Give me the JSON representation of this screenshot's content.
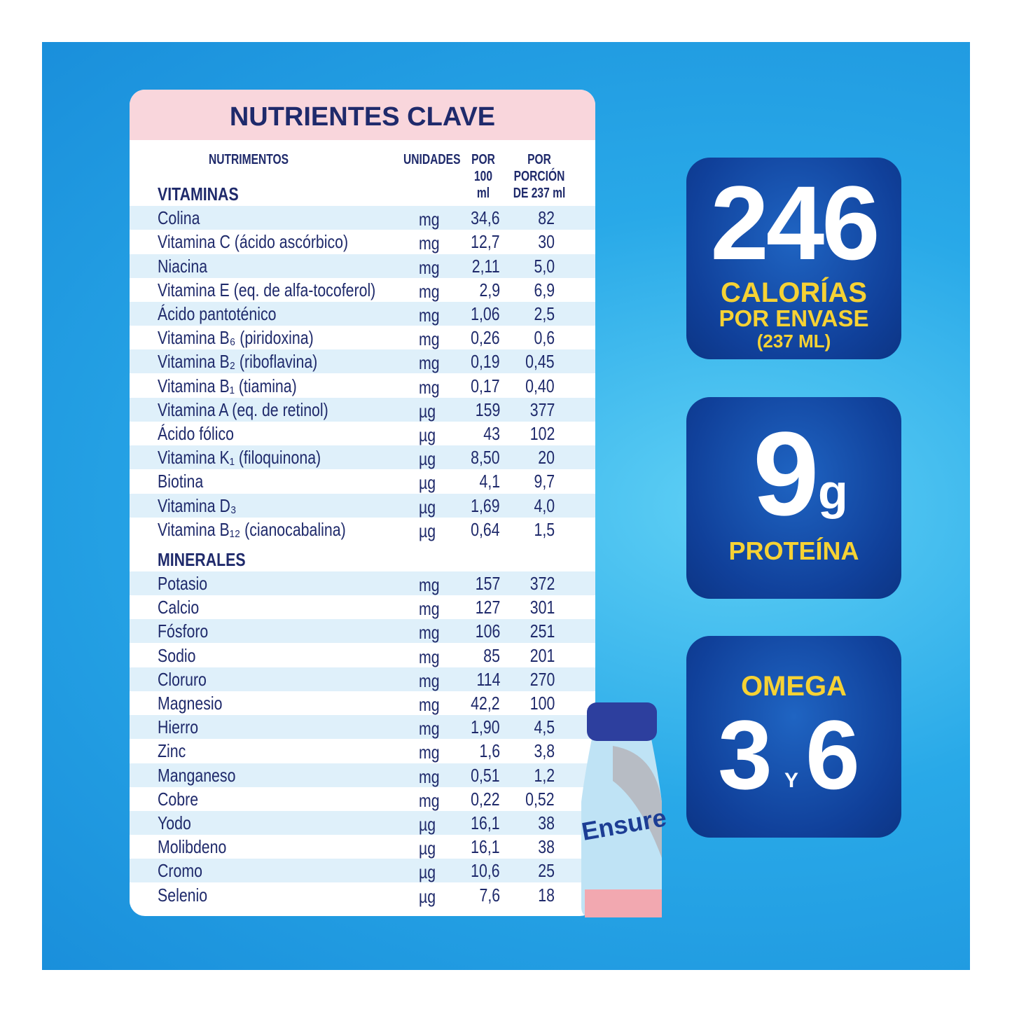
{
  "table": {
    "title": "NUTRIENTES CLAVE",
    "columns": [
      "NUTRIMENTOS",
      "UNIDADES",
      "POR 100 ml",
      "POR PORCIÓN DE 237 ml"
    ],
    "sections": [
      {
        "title": "VITAMINAS",
        "rows": [
          [
            "Colina",
            "mg",
            "34,6",
            "82"
          ],
          [
            "Vitamina C (ácido ascórbico)",
            "mg",
            "12,7",
            "30"
          ],
          [
            "Niacina",
            "mg",
            "2,11",
            "5,0"
          ],
          [
            "Vitamina E (eq. de alfa-tocoferol)",
            "mg",
            "2,9",
            "6,9"
          ],
          [
            "Ácido pantoténico",
            "mg",
            "1,06",
            "2,5"
          ],
          [
            "Vitamina B₆ (piridoxina)",
            "mg",
            "0,26",
            "0,6"
          ],
          [
            "Vitamina B₂ (riboflavina)",
            "mg",
            "0,19",
            "0,45"
          ],
          [
            "Vitamina B₁ (tiamina)",
            "mg",
            "0,17",
            "0,40"
          ],
          [
            "Vitamina A (eq. de retinol)",
            "µg",
            "159",
            "377"
          ],
          [
            "Ácido fólico",
            "µg",
            "43",
            "102"
          ],
          [
            "Vitamina K₁ (filoquinona)",
            "µg",
            "8,50",
            "20"
          ],
          [
            "Biotina",
            "µg",
            "4,1",
            "9,7"
          ],
          [
            "Vitamina D₃",
            "µg",
            "1,69",
            "4,0"
          ],
          [
            "Vitamina B₁₂ (cianocabalina)",
            "µg",
            "0,64",
            "1,5"
          ]
        ]
      },
      {
        "title": "MINERALES",
        "rows": [
          [
            "Potasio",
            "mg",
            "157",
            "372"
          ],
          [
            "Calcio",
            "mg",
            "127",
            "301"
          ],
          [
            "Fósforo",
            "mg",
            "106",
            "251"
          ],
          [
            "Sodio",
            "mg",
            "85",
            "201"
          ],
          [
            "Cloruro",
            "mg",
            "114",
            "270"
          ],
          [
            "Magnesio",
            "mg",
            "42,2",
            "100"
          ],
          [
            "Hierro",
            "mg",
            "1,90",
            "4,5"
          ],
          [
            "Zinc",
            "mg",
            "1,6",
            "3,8"
          ],
          [
            "Manganeso",
            "mg",
            "0,51",
            "1,2"
          ],
          [
            "Cobre",
            "mg",
            "0,22",
            "0,52"
          ],
          [
            "Yodo",
            "µg",
            "16,1",
            "38"
          ],
          [
            "Molibdeno",
            "µg",
            "16,1",
            "38"
          ],
          [
            "Cromo",
            "µg",
            "10,6",
            "25"
          ],
          [
            "Selenio",
            "µg",
            "7,6",
            "18"
          ]
        ]
      }
    ]
  },
  "badges": {
    "calories": {
      "value": "246",
      "label": "CALORÍAS",
      "line2": "POR ENVASE",
      "line3": "(237 ML)"
    },
    "protein": {
      "value": "9",
      "unit": "g",
      "label": "PROTEÍNA"
    },
    "omega": {
      "label": "OMEGA",
      "a": "3",
      "joiner": "Y",
      "b": "6"
    }
  },
  "bottle": {
    "brand": "Ensure"
  }
}
